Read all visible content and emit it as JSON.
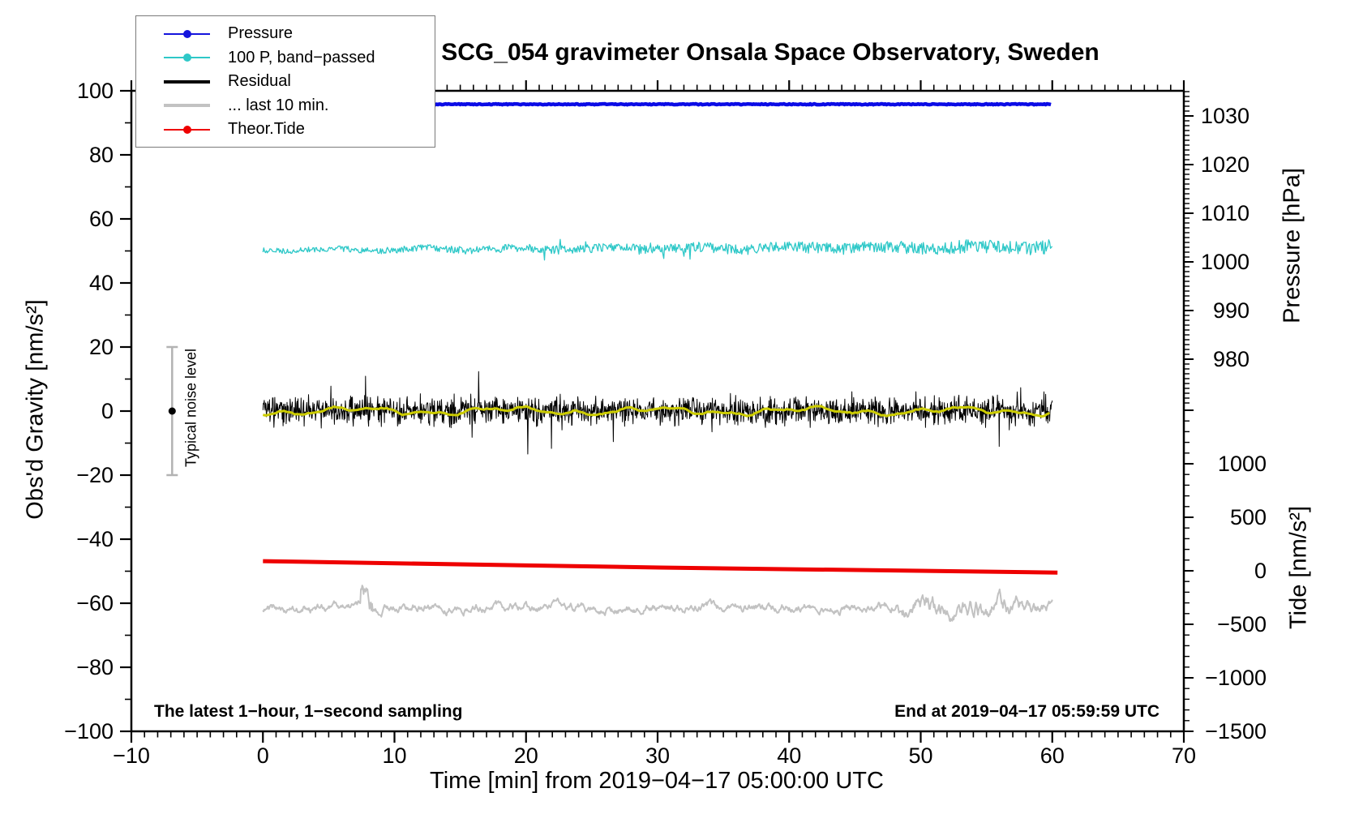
{
  "title": "SCG_054 gravimeter Onsala Space Observatory, Sweden",
  "annotations": {
    "bottom_left": "The latest 1−hour, 1−second sampling",
    "bottom_right": "End at 2019−04−17 05:59:59 UTC"
  },
  "noise_marker": {
    "label": "Typical noise level",
    "time_min": -6.9,
    "center_value": 0,
    "error": 20,
    "bar_color": "#b3b3b3",
    "dot_color": "#000000"
  },
  "legend": {
    "items": [
      {
        "label": "Pressure",
        "color": "#1414dd",
        "marker": "line-dot",
        "line_width": 2
      },
      {
        "label": "100 P, band−passed",
        "color": "#2ec8c8",
        "marker": "line-dot",
        "line_width": 2
      },
      {
        "label": "Residual",
        "color": "#000000",
        "marker": "line",
        "line_width": 4
      },
      {
        "label": "... last 10 min.",
        "color": "#c2c2c2",
        "marker": "line",
        "line_width": 4
      },
      {
        "label": "Theor.Tide",
        "color": "#ee0000",
        "marker": "line-dot",
        "line_width": 2
      }
    ]
  },
  "chart_data": {
    "type": "line",
    "title": "SCG_054 gravimeter Onsala Space Observatory, Sweden",
    "xlabel": "Time [min] from 2019−04−17 05:00:00 UTC",
    "grid": false,
    "legend_position": "top-left",
    "time_axis": {
      "min": -10,
      "max": 70,
      "major_step": 10,
      "minor_step": 1,
      "tick_labels": [
        "−10",
        "0",
        "10",
        "20",
        "30",
        "40",
        "50",
        "60",
        "70"
      ],
      "tick_values": [
        -10,
        0,
        10,
        20,
        30,
        40,
        50,
        60,
        70
      ]
    },
    "gravity_axis": {
      "label": "Obs'd Gravity [nm/s²]",
      "min": -100,
      "max": 100,
      "major_step": 20,
      "minor_step": 10,
      "tick_labels": [
        "100",
        "80",
        "60",
        "40",
        "20",
        "0",
        "−20",
        "−40",
        "−60",
        "−80",
        "−100"
      ],
      "tick_values": [
        100,
        80,
        60,
        40,
        20,
        0,
        -20,
        -40,
        -60,
        -80,
        -100
      ]
    },
    "pressure_axis": {
      "label": "Pressure [hPa]",
      "side": "right-upper",
      "tick_labels": [
        "1030",
        "1020",
        "1010",
        "1000",
        "990",
        "980"
      ],
      "tick_values": [
        1030,
        1020,
        1010,
        1000,
        990,
        980
      ],
      "minor_step": 1,
      "minor_min": 971,
      "minor_max": 1035
    },
    "tide_axis": {
      "label": "Tide [nm/s²]",
      "side": "right-lower",
      "tick_labels": [
        "1000",
        "500",
        "0",
        "−500",
        "−1000",
        "−1500"
      ],
      "tick_values": [
        1000,
        500,
        0,
        -500,
        -1000,
        -1500
      ],
      "minor_step": 100,
      "minor_min": -1500,
      "minor_max": 1500
    },
    "series": [
      {
        "name": "Pressure",
        "axis": "pressure",
        "color": "#0b0be6",
        "width": 4.5,
        "t_start": 0,
        "t_end": 60,
        "mean_hpa": 1032.4,
        "jitter_hpa": 0.1,
        "description": "nearly constant air pressure ~1032.4 hPa"
      },
      {
        "name": "100 P, band−passed",
        "axis": "gravity",
        "color": "#2ec8c8",
        "width": 1.3,
        "t_start": 0,
        "t_end": 60,
        "mean_start": 50.3,
        "mean_end": 51.2,
        "noise_amp_start": 0.8,
        "noise_amp_end": 2.2,
        "description": "band-passed pressure x100, noisy line near +50 nm/s², noise grows to the right"
      },
      {
        "name": "Residual",
        "axis": "gravity",
        "color": "#000000",
        "width": 1,
        "t_start": 0,
        "t_end": 60,
        "mean": 0,
        "sigma": 2.1,
        "spike_max": 13,
        "description": "1-second residual gravity, dense noise band ±5 nm/s² with spikes to ±13"
      },
      {
        "name": "Residual smoothed",
        "axis": "gravity",
        "color": "#cccc00",
        "width": 3,
        "t_start": 0,
        "t_end": 60,
        "mean": 0,
        "wiggle_amp": 1.2,
        "in_legend": false,
        "description": "yellow low-pass of residual, gentle wiggles around 0"
      },
      {
        "name": "... last 10 min.",
        "axis": "gravity",
        "color": "#c2c2c2",
        "width": 2,
        "t_start": 0,
        "t_end": 60,
        "mean": -61.5,
        "amp_typical": 2.8,
        "amp_late": 6.5,
        "spike_time": 7.9,
        "amplified_after": 46,
        "description": "last-10-min residual trace offset to −61.5 nm/s², burst near t=8, larger swings after t=46"
      },
      {
        "name": "Theor.Tide",
        "axis": "tide",
        "color": "#ee0000",
        "width": 5,
        "t_start": 0,
        "t_end": 60.4,
        "value_start": 90,
        "value_end": -17,
        "description": "theoretical tide, almost straight line from +90 to −17 nm/s² on tide axis"
      }
    ]
  }
}
